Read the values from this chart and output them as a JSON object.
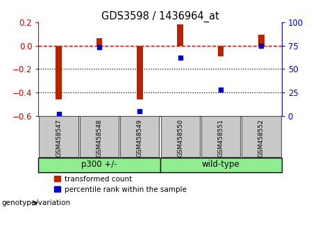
{
  "title": "GDS3598 / 1436964_at",
  "samples": [
    "GSM458547",
    "GSM458548",
    "GSM458549",
    "GSM458550",
    "GSM458551",
    "GSM458552"
  ],
  "red_values": [
    -0.46,
    0.06,
    -0.46,
    0.18,
    -0.09,
    0.09
  ],
  "blue_percentiles": [
    2,
    73,
    5,
    62,
    28,
    75
  ],
  "ylim_left": [
    -0.6,
    0.2
  ],
  "ylim_right": [
    0,
    100
  ],
  "groups": [
    {
      "label": "p300 +/-",
      "start": 0,
      "end": 3,
      "color": "#90EE90"
    },
    {
      "label": "wild-type",
      "start": 3,
      "end": 6,
      "color": "#90EE90"
    }
  ],
  "bar_color_red": "#BB2200",
  "dot_color_blue": "#0000CC",
  "hline_color": "#CC0000",
  "dotline_color": "#000000",
  "bg_color": "#FFFFFF",
  "plot_bg": "#FFFFFF",
  "left_tick_color": "#CC0000",
  "right_tick_color": "#0000CC",
  "sample_box_color": "#C8C8C8",
  "legend_red_label": "transformed count",
  "legend_blue_label": "percentile rank within the sample",
  "genotype_label": "genotype/variation",
  "left_yticks": [
    0.2,
    0.0,
    -0.2,
    -0.4,
    -0.6
  ],
  "right_yticks": [
    100,
    75,
    50,
    25,
    0
  ],
  "bar_width": 0.15
}
